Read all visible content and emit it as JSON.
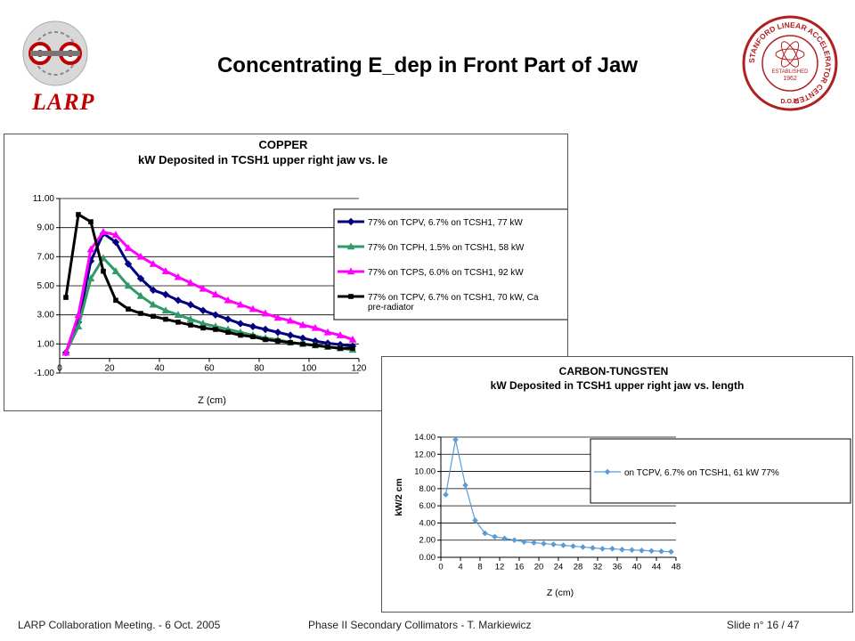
{
  "slide": {
    "title": "Concentrating E_dep in Front Part of Jaw",
    "logo_left_text": "LARP",
    "logo_right_ring_text": "STANFORD LINEAR ACCELERATOR CENTER",
    "logo_right_established": "ESTABLISHED",
    "logo_right_year": "1962",
    "logo_right_doe": "D.O.E.",
    "footer_left": "LARP Collaboration Meeting.  -  6 Oct. 2005",
    "footer_center": "Phase II Secondary Collimators  -  T. Markiewicz",
    "footer_right": "Slide n° 16 / 47"
  },
  "colors": {
    "title": "#000000",
    "larp_red": "#c00000",
    "slac_red": "#b02020",
    "navy": "#000080",
    "teal": "#339966",
    "magenta": "#ff00ff",
    "black": "#000000",
    "light_blue": "#5b9bd5",
    "plot_area_bg": "#ffffff",
    "grid": "#000000"
  },
  "chart_data": [
    {
      "type": "line",
      "title": "COPPER",
      "subtitle": "kW Deposited in TCSH1 upper right jaw vs. le",
      "xlabel": "Z (cm)",
      "ylabel": "",
      "xlim": [
        0,
        120
      ],
      "ylim": [
        -1,
        11
      ],
      "x_ticks": [
        0,
        20,
        40,
        60,
        80,
        100,
        120
      ],
      "y_ticks": [
        -1,
        1,
        3,
        5,
        7,
        9,
        11
      ],
      "x_tick_labels": [
        "0",
        "20",
        "40",
        "60",
        "80",
        "100",
        "120"
      ],
      "y_tick_labels": [
        "-1.00",
        "1.00",
        "3.00",
        "5.00",
        "7.00",
        "9.00",
        "11.00"
      ],
      "grid": "horizontal",
      "legend_position": "right",
      "series": [
        {
          "name": "77% on TCPV, 6.7% on TCSH1, 77 kW",
          "color": "#000080",
          "marker": "diamond",
          "x": [
            2.5,
            7.5,
            12.5,
            17.5,
            22.5,
            27.5,
            32.5,
            37.5,
            42.5,
            47.5,
            52.5,
            57.5,
            62.5,
            67.5,
            72.5,
            77.5,
            82.5,
            87.5,
            92.5,
            97.5,
            102.5,
            107.5,
            112.5,
            117.5
          ],
          "y": [
            0.4,
            2.5,
            6.7,
            8.6,
            8.0,
            6.5,
            5.5,
            4.7,
            4.4,
            4.0,
            3.7,
            3.3,
            3.0,
            2.7,
            2.4,
            2.2,
            2.0,
            1.8,
            1.6,
            1.4,
            1.2,
            1.05,
            0.95,
            0.85
          ]
        },
        {
          "name": "77% 0n TCPH, 1.5% on TCSH1, 58 kW",
          "color": "#339966",
          "marker": "triangle",
          "x": [
            2.5,
            7.5,
            12.5,
            17.5,
            22.5,
            27.5,
            32.5,
            37.5,
            42.5,
            47.5,
            52.5,
            57.5,
            62.5,
            67.5,
            72.5,
            77.5,
            82.5,
            87.5,
            92.5,
            97.5,
            102.5,
            107.5,
            112.5,
            117.5
          ],
          "y": [
            0.4,
            2.2,
            5.5,
            6.9,
            6.0,
            5.0,
            4.3,
            3.7,
            3.3,
            3.0,
            2.7,
            2.4,
            2.2,
            2.0,
            1.8,
            1.6,
            1.4,
            1.3,
            1.1,
            1.0,
            0.9,
            0.8,
            0.7,
            0.6
          ]
        },
        {
          "name": "77% on TCPS, 6.0% on TCSH1, 92 kW",
          "color": "#ff00ff",
          "marker": "triangle",
          "x": [
            2.5,
            7.5,
            12.5,
            17.5,
            22.5,
            27.5,
            32.5,
            37.5,
            42.5,
            47.5,
            52.5,
            57.5,
            62.5,
            67.5,
            72.5,
            77.5,
            82.5,
            87.5,
            92.5,
            97.5,
            102.5,
            107.5,
            112.5,
            117.5
          ],
          "y": [
            0.4,
            3.0,
            7.5,
            8.7,
            8.5,
            7.6,
            7.0,
            6.5,
            6.0,
            5.6,
            5.2,
            4.8,
            4.4,
            4.0,
            3.7,
            3.4,
            3.1,
            2.8,
            2.6,
            2.3,
            2.1,
            1.8,
            1.6,
            1.3
          ]
        },
        {
          "name": "77% on TCPV, 6.7% on TCSH1, 70 kW, Ca",
          "name_line2": "pre-radiator",
          "color": "#000000",
          "marker": "square",
          "x": [
            2.5,
            7.5,
            12.5,
            17.5,
            22.5,
            27.5,
            32.5,
            37.5,
            42.5,
            47.5,
            52.5,
            57.5,
            62.5,
            67.5,
            72.5,
            77.5,
            82.5,
            87.5,
            92.5,
            97.5,
            102.5,
            107.5,
            112.5,
            117.5
          ],
          "y": [
            4.2,
            9.9,
            9.4,
            6.0,
            4.0,
            3.4,
            3.1,
            2.9,
            2.7,
            2.5,
            2.3,
            2.1,
            2.0,
            1.8,
            1.6,
            1.5,
            1.3,
            1.2,
            1.1,
            1.0,
            0.9,
            0.8,
            0.7,
            0.7
          ]
        }
      ]
    },
    {
      "type": "line",
      "title": "CARBON-TUNGSTEN",
      "subtitle": "kW Deposited in TCSH1 upper right jaw vs. length",
      "xlabel": "Z (cm)",
      "ylabel": "kW/2 cm",
      "xlim": [
        0,
        48
      ],
      "ylim": [
        0,
        14
      ],
      "x_ticks": [
        0,
        4,
        8,
        12,
        16,
        20,
        24,
        28,
        32,
        36,
        40,
        44,
        48
      ],
      "y_ticks": [
        0,
        2,
        4,
        6,
        8,
        10,
        12,
        14
      ],
      "x_tick_labels": [
        "0",
        "4",
        "8",
        "12",
        "16",
        "20",
        "24",
        "28",
        "32",
        "36",
        "40",
        "44",
        "48"
      ],
      "y_tick_labels": [
        "0.00",
        "2.00",
        "4.00",
        "6.00",
        "8.00",
        "10.00",
        "12.00",
        "14.00"
      ],
      "grid": "horizontal",
      "legend_position": "right",
      "series": [
        {
          "name": "on TCPV, 6.7% on TCSH1, 61 kW 77%",
          "color": "#5b9bd5",
          "marker": "diamond",
          "x": [
            1,
            3,
            5,
            7,
            9,
            11,
            13,
            15,
            17,
            19,
            21,
            23,
            25,
            27,
            29,
            31,
            33,
            35,
            37,
            39,
            41,
            43,
            45,
            47
          ],
          "y": [
            7.3,
            13.7,
            8.4,
            4.3,
            2.8,
            2.4,
            2.2,
            2.0,
            1.8,
            1.7,
            1.6,
            1.5,
            1.4,
            1.3,
            1.2,
            1.1,
            1.0,
            1.0,
            0.9,
            0.85,
            0.8,
            0.75,
            0.7,
            0.65
          ]
        }
      ]
    }
  ]
}
